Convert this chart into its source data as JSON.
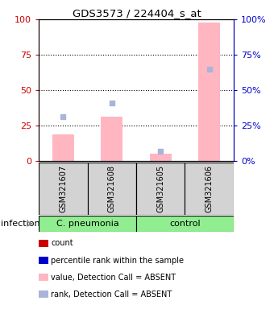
{
  "title": "GDS3573 / 224404_s_at",
  "samples": [
    "GSM321607",
    "GSM321608",
    "GSM321605",
    "GSM321606"
  ],
  "groups": [
    {
      "label": "C. pneumonia",
      "color": "#90ee90"
    },
    {
      "label": "control",
      "color": "#90ee90"
    }
  ],
  "group_label": "infection",
  "pink_bars": [
    19,
    31,
    5,
    98
  ],
  "blue_squares": [
    31,
    41,
    7,
    65
  ],
  "ylim": [
    0,
    100
  ],
  "yticks": [
    0,
    25,
    50,
    75,
    100
  ],
  "bar_color": "#ffb6c1",
  "square_color": "#aab4d8",
  "left_axis_color": "#cc0000",
  "right_axis_color": "#0000cc",
  "background_color": "#ffffff",
  "plot_bg_color": "#ffffff",
  "sample_bg_color": "#d3d3d3",
  "legend_items": [
    {
      "label": "count",
      "color": "#cc0000"
    },
    {
      "label": "percentile rank within the sample",
      "color": "#0000cc"
    },
    {
      "label": "value, Detection Call = ABSENT",
      "color": "#ffb6c1"
    },
    {
      "label": "rank, Detection Call = ABSENT",
      "color": "#aab4d8"
    }
  ]
}
